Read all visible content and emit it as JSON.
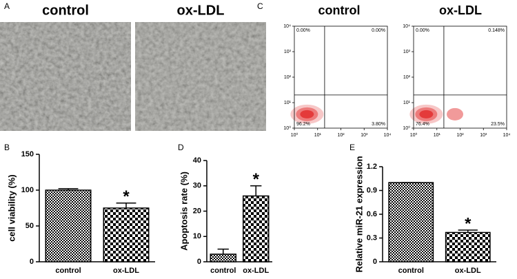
{
  "panel_a": {
    "label": "A",
    "images": [
      "control",
      "ox-LDL"
    ]
  },
  "chart_data": [
    {
      "type": "flow",
      "panel": "C",
      "title": "control",
      "log": true,
      "xlim": [
        1,
        10000
      ],
      "ylim": [
        1,
        10000
      ],
      "xticks": [
        {
          "value": 1,
          "label": "10⁰"
        },
        {
          "value": 10,
          "label": "10¹"
        },
        {
          "value": 100,
          "label": "10²"
        },
        {
          "value": 1000,
          "label": "10³"
        },
        {
          "value": 10000,
          "label": "10⁴"
        }
      ],
      "yticks": [
        {
          "value": 1,
          "label": "10⁰"
        },
        {
          "value": 10,
          "label": "10¹"
        },
        {
          "value": 100,
          "label": "10²"
        },
        {
          "value": 1000,
          "label": "10³"
        },
        {
          "value": 10000,
          "label": "10⁴"
        }
      ],
      "gate_x": 20,
      "gate_y": 20,
      "color": "#e02020",
      "quadrant_values": [
        0,
        0,
        96.2,
        3.8
      ],
      "value_labels": [
        "0.00%",
        "0.00%",
        "96.2%",
        "3.80%"
      ]
    },
    {
      "type": "flow",
      "title": "ox-LDL",
      "log": true,
      "xlim": [
        1,
        10000
      ],
      "ylim": [
        1,
        10000
      ],
      "xticks": [
        {
          "value": 1,
          "label": "10⁰"
        },
        {
          "value": 10,
          "label": "10¹"
        },
        {
          "value": 100,
          "label": "10²"
        },
        {
          "value": 1000,
          "label": "10³"
        },
        {
          "value": 10000,
          "label": "10⁴"
        }
      ],
      "yticks": [
        {
          "value": 1,
          "label": "10⁰"
        },
        {
          "value": 10,
          "label": "10¹"
        },
        {
          "value": 100,
          "label": "10²"
        },
        {
          "value": 1000,
          "label": "10³"
        },
        {
          "value": 10000,
          "label": "10⁴"
        }
      ],
      "gate_x": 20,
      "gate_y": 20,
      "color": "#e02020",
      "quadrant_values": [
        0,
        0.148,
        76.4,
        23.5
      ],
      "value_labels": [
        "0.00%",
        "0.148%",
        "76.4%",
        "23.5%"
      ]
    },
    {
      "type": "bar",
      "panel": "B",
      "y_label": "cell viability (%)",
      "categories": [
        "control",
        "ox-LDL"
      ],
      "values": [
        100,
        75
      ],
      "errors": [
        2,
        7
      ],
      "ylim": [
        0,
        150
      ],
      "yticks": [
        0,
        50,
        100,
        150
      ],
      "annotation": "*"
    },
    {
      "type": "bar",
      "panel": "D",
      "y_label": "Apoptosis rate (%)",
      "categories": [
        "control",
        "ox-LDL"
      ],
      "values": [
        3,
        26
      ],
      "errors": [
        2,
        4
      ],
      "ylim": [
        0,
        40
      ],
      "yticks": [
        0,
        10,
        20,
        30,
        40
      ],
      "annotation": "*"
    },
    {
      "type": "bar",
      "panel": "E",
      "y_label": "Relative miR-21 expression",
      "categories": [
        "control",
        "ox-LDL"
      ],
      "values": [
        1,
        0.37
      ],
      "errors": [
        0,
        0.03
      ],
      "ylim": [
        0,
        1.2
      ],
      "yticks": [
        0,
        0.3,
        0.6,
        0.9,
        1.2
      ],
      "annotation": "*"
    }
  ]
}
